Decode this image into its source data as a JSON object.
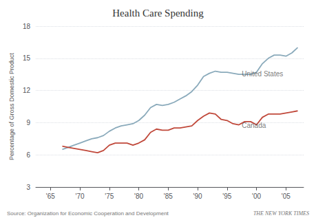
{
  "chart_data": {
    "type": "line",
    "title": "Health Care Spending",
    "ylabel": "Percentage of Gross Domestic Product",
    "x": [
      1967,
      1968,
      1969,
      1970,
      1971,
      1972,
      1973,
      1974,
      1975,
      1976,
      1977,
      1978,
      1979,
      1980,
      1981,
      1982,
      1983,
      1984,
      1985,
      1986,
      1987,
      1988,
      1989,
      1990,
      1991,
      1992,
      1993,
      1994,
      1995,
      1996,
      1997,
      1998,
      1999,
      2000,
      2001,
      2002,
      2003,
      2004,
      2005,
      2006,
      2007
    ],
    "series": [
      {
        "color": "#8aaabb",
        "values": [
          6.5,
          6.7,
          6.9,
          7.1,
          7.3,
          7.5,
          7.6,
          7.8,
          8.2,
          8.5,
          8.7,
          8.8,
          8.9,
          9.2,
          9.7,
          10.4,
          10.7,
          10.6,
          10.7,
          10.9,
          11.2,
          11.5,
          11.9,
          12.5,
          13.3,
          13.6,
          13.8,
          13.7,
          13.7,
          13.6,
          13.5,
          13.5,
          13.5,
          13.7,
          14.5,
          15.0,
          15.3,
          15.3,
          15.2,
          15.5,
          16.0
        ]
      },
      {
        "color": "#c0483a",
        "values": [
          6.8,
          6.7,
          6.6,
          6.5,
          6.4,
          6.3,
          6.2,
          6.4,
          6.9,
          7.1,
          7.1,
          7.1,
          6.9,
          7.1,
          7.4,
          8.1,
          8.4,
          8.3,
          8.3,
          8.5,
          8.5,
          8.6,
          8.7,
          9.2,
          9.6,
          9.9,
          9.8,
          9.3,
          9.2,
          8.9,
          8.8,
          9.1,
          9.1,
          8.8,
          9.5,
          9.8,
          9.8,
          9.8,
          9.9,
          10.0,
          10.1
        ]
      }
    ],
    "annotations": [
      {
        "text": "United States",
        "x": 1997.5,
        "y": 13.55
      },
      {
        "text": "Canada",
        "x": 1997.5,
        "y": 8.75
      }
    ],
    "footnotes": [
      "Source: Organization for Economic Cooperation and Development",
      "THE NEW YORK TIMES"
    ],
    "xlim": [
      1962.5,
      2008
    ],
    "xticks": [
      {
        "value": 1965,
        "label": "'65"
      },
      {
        "value": 1970,
        "label": "'70"
      },
      {
        "value": 1975,
        "label": "'75"
      },
      {
        "value": 1980,
        "label": "'80"
      },
      {
        "value": 1985,
        "label": "'85"
      },
      {
        "value": 1990,
        "label": "'90"
      },
      {
        "value": 1995,
        "label": "'95"
      },
      {
        "value": 2000,
        "label": "'00"
      },
      {
        "value": 2005,
        "label": "'05"
      }
    ],
    "ylim": [
      3,
      18
    ],
    "yticks": [
      3,
      6,
      9,
      12,
      15,
      18
    ],
    "grid": true
  }
}
